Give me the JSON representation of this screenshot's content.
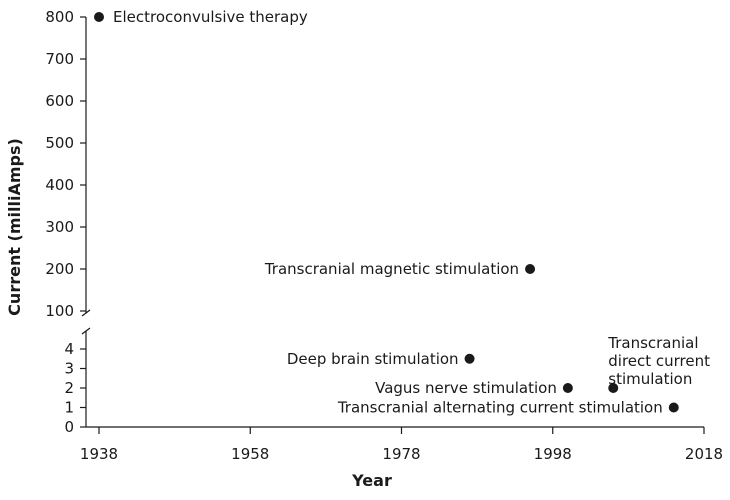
{
  "chart_data": {
    "type": "scatter",
    "title": "",
    "xlabel": "Year",
    "ylabel": "Current (milliAmps)",
    "grid": false,
    "legend": "none",
    "xlim": [
      1936,
      2018
    ],
    "x_ticks": [
      1938,
      1958,
      1978,
      1998,
      2018
    ],
    "y_axis_break": true,
    "y_lower_range": [
      0,
      4
    ],
    "y_lower_ticks": [
      0,
      1,
      2,
      3,
      4
    ],
    "y_upper_range": [
      100,
      800
    ],
    "y_upper_ticks": [
      100,
      200,
      300,
      400,
      500,
      600,
      700,
      800
    ],
    "points": [
      {
        "label": "Electroconvulsive therapy",
        "x": 1938,
        "y": 800
      },
      {
        "label": "Transcranial magnetic stimulation",
        "x": 1995,
        "y": 200
      },
      {
        "label": "Deep brain stimulation",
        "x": 1987,
        "y": 3.5
      },
      {
        "label": "Vagus nerve stimulation",
        "x": 2000,
        "y": 2
      },
      {
        "label": "Transcranial direct current stimulation",
        "x": 2006,
        "y": 2
      },
      {
        "label": "Transcranial alternating current stimulation",
        "x": 2014,
        "y": 1
      }
    ]
  },
  "colors": {
    "ink": "#1a1a1a",
    "background": "#ffffff"
  }
}
